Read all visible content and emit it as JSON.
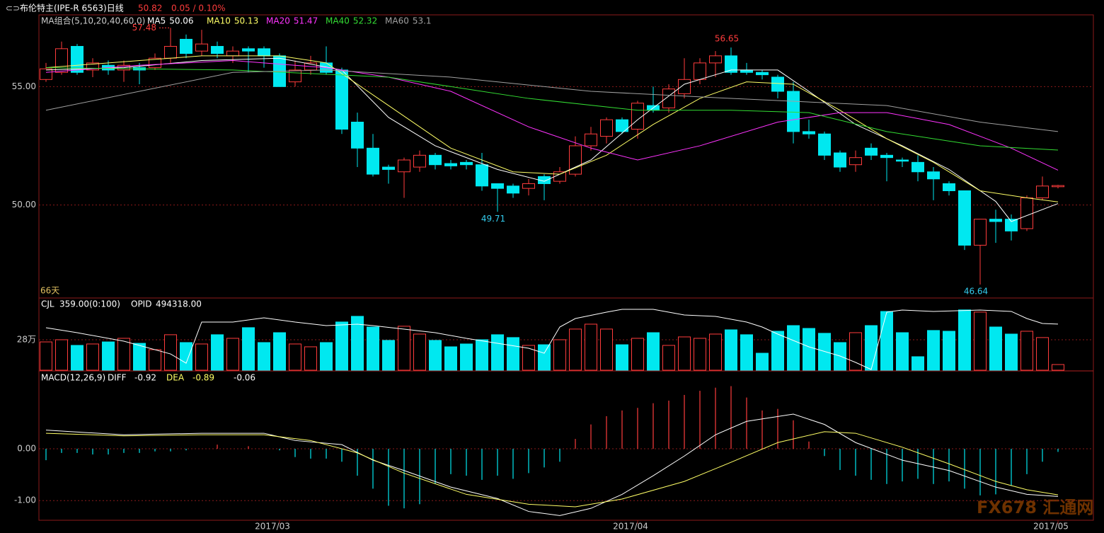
{
  "chart_data": [
    {
      "type": "candlestick",
      "title": "布伦特主(IPE-R 6563)日线",
      "change": "0.05 / 0.10%",
      "legend_title": "MA组合(5,10,20,40,60,0)",
      "period_label": "66天",
      "up_color": "#ff3c3c",
      "down_color": "#00e8f0",
      "ylim": [
        46.1,
        58.0
      ],
      "yticks": [
        {
          "value": 55,
          "label": "55.00"
        },
        {
          "value": 50,
          "label": "50.00"
        }
      ],
      "annotations": [
        57.48,
        56.65,
        49.71,
        46.64
      ],
      "open": [
        55.3,
        55.6,
        56.7,
        55.7,
        55.9,
        55.7,
        55.8,
        55.8,
        56.2,
        57.0,
        56.5,
        56.7,
        56.3,
        56.6,
        56.6,
        56.3,
        55.2,
        55.7,
        56.0,
        55.7,
        53.5,
        52.4,
        51.6,
        51.4,
        51.6,
        52.1,
        51.75,
        51.8,
        51.7,
        50.9,
        50.8,
        50.7,
        51.2,
        51.0,
        51.3,
        52.5,
        52.9,
        53.6,
        53.2,
        54.2,
        54.1,
        54.7,
        55.3,
        56.0,
        56.3,
        55.7,
        55.6,
        55.4,
        54.8,
        53.1,
        53.0,
        52.2,
        51.7,
        52.4,
        52.1,
        51.9,
        51.8,
        51.4,
        50.9,
        50.6,
        48.3,
        49.4,
        49.4,
        49.0,
        50.3,
        50.77
      ],
      "high": [
        56.0,
        56.9,
        56.8,
        56.2,
        56.1,
        56.1,
        56.0,
        56.4,
        57.48,
        57.2,
        57.4,
        56.9,
        56.7,
        56.7,
        56.7,
        56.4,
        56.1,
        56.3,
        56.7,
        55.8,
        53.9,
        53.0,
        51.7,
        52.0,
        52.3,
        52.2,
        51.9,
        51.9,
        52.2,
        50.9,
        50.9,
        51.1,
        51.3,
        51.6,
        52.9,
        53.3,
        53.7,
        53.7,
        54.4,
        55.0,
        55.1,
        56.2,
        56.2,
        56.5,
        56.65,
        56.0,
        55.7,
        55.5,
        55.2,
        53.6,
        53.1,
        52.3,
        52.3,
        52.6,
        52.2,
        52.0,
        52.1,
        51.6,
        51.0,
        50.6,
        49.4,
        49.8,
        49.6,
        50.4,
        51.2,
        50.85
      ],
      "low": [
        55.2,
        55.5,
        55.5,
        55.4,
        55.5,
        55.2,
        55.1,
        55.7,
        56.0,
        56.2,
        56.3,
        56.2,
        56.0,
        55.6,
        55.8,
        55.0,
        55.0,
        55.5,
        55.5,
        53.0,
        51.6,
        51.2,
        50.9,
        50.3,
        51.4,
        51.5,
        51.5,
        51.5,
        50.6,
        49.71,
        50.3,
        50.4,
        50.2,
        50.9,
        51.2,
        52.3,
        52.6,
        53.0,
        52.8,
        53.9,
        53.9,
        54.5,
        55.1,
        55.4,
        55.5,
        55.5,
        55.3,
        54.5,
        52.6,
        52.8,
        51.9,
        51.4,
        51.4,
        51.9,
        51.0,
        51.6,
        51.0,
        50.2,
        50.4,
        48.1,
        46.64,
        48.4,
        48.5,
        48.9,
        50.2,
        50.7
      ],
      "close": [
        55.75,
        56.6,
        55.6,
        56.0,
        55.7,
        55.9,
        55.7,
        56.2,
        56.7,
        56.4,
        56.8,
        56.4,
        56.5,
        56.5,
        56.3,
        55.0,
        55.7,
        56.0,
        55.6,
        53.2,
        52.4,
        51.3,
        51.5,
        51.9,
        52.1,
        51.7,
        51.65,
        51.7,
        50.8,
        50.7,
        50.5,
        50.9,
        50.9,
        51.4,
        52.5,
        53.0,
        53.6,
        53.1,
        54.3,
        54.0,
        54.9,
        55.3,
        56.0,
        56.3,
        55.6,
        55.6,
        55.5,
        54.8,
        53.1,
        53.0,
        52.1,
        51.6,
        52.0,
        52.1,
        52.0,
        51.85,
        51.4,
        51.1,
        50.6,
        48.3,
        49.4,
        49.3,
        48.9,
        50.3,
        50.8,
        50.82
      ],
      "series": [
        {
          "name": "MA5",
          "color": "#ffffff",
          "x": [
            0,
            5,
            10,
            15,
            19,
            22,
            25,
            29,
            32,
            35,
            38,
            41,
            44,
            47,
            49,
            52,
            55,
            58,
            61,
            62,
            65
          ],
          "values": [
            55.7,
            55.8,
            56.1,
            56.2,
            55.7,
            53.7,
            52.5,
            51.5,
            51.0,
            51.9,
            53.6,
            55.1,
            55.7,
            55.7,
            54.8,
            53.4,
            52.5,
            51.5,
            50.15,
            49.3,
            50.06
          ]
        },
        {
          "name": "MA10",
          "color": "#ffff66",
          "x": [
            0,
            10,
            15,
            18,
            22,
            26,
            30,
            33,
            36,
            39,
            42,
            45,
            48,
            51,
            54,
            57,
            60,
            63,
            65
          ],
          "values": [
            55.8,
            56.3,
            56.3,
            56.0,
            54.2,
            52.4,
            51.4,
            51.3,
            52.1,
            53.4,
            54.5,
            55.2,
            55.1,
            54.0,
            52.8,
            51.8,
            50.6,
            50.3,
            50.13
          ]
        },
        {
          "name": "MA20",
          "color": "#ff33ff",
          "x": [
            0,
            6,
            12,
            18,
            22,
            26,
            31,
            35,
            38,
            42,
            47,
            51,
            54,
            58,
            62,
            65
          ],
          "values": [
            55.6,
            55.9,
            56.1,
            55.8,
            55.4,
            54.8,
            53.3,
            52.4,
            51.9,
            52.5,
            53.5,
            53.9,
            53.9,
            53.4,
            52.4,
            51.47
          ]
        },
        {
          "name": "MA40",
          "color": "#33dd33",
          "x": [
            0,
            12,
            22,
            31,
            38,
            44,
            49,
            54,
            60,
            65
          ],
          "values": [
            55.8,
            55.7,
            55.4,
            54.5,
            54.0,
            54.0,
            53.9,
            53.1,
            52.5,
            52.32
          ]
        },
        {
          "name": "MA60",
          "color": "#a0a0a0",
          "x": [
            0,
            6,
            12,
            18,
            26,
            35,
            44,
            54,
            60,
            65
          ],
          "values": [
            54.0,
            54.8,
            55.6,
            55.7,
            55.4,
            54.8,
            54.5,
            54.2,
            53.5,
            53.1
          ]
        }
      ]
    },
    {
      "type": "volume",
      "title": "CJL",
      "params": "359.00(0:100)",
      "ylim": [
        0,
        657000
      ],
      "yticks": [
        {
          "value": 280000,
          "label": "28万"
        }
      ],
      "values": [
        260000,
        280000,
        228000,
        241000,
        260000,
        293000,
        247000,
        189000,
        326000,
        254000,
        241000,
        326000,
        293000,
        391000,
        254000,
        345000,
        241000,
        215000,
        254000,
        443000,
        495000,
        397000,
        274000,
        404000,
        332000,
        274000,
        215000,
        241000,
        280000,
        326000,
        300000,
        228000,
        234000,
        280000,
        378000,
        423000,
        378000,
        234000,
        293000,
        345000,
        228000,
        306000,
        293000,
        332000,
        371000,
        326000,
        156000,
        358000,
        410000,
        384000,
        339000,
        254000,
        345000,
        410000,
        540000,
        345000,
        124000,
        365000,
        358000,
        554000,
        534000,
        397000,
        332000,
        358000,
        300000,
        52000
      ],
      "series": [
        {
          "name": "OPID",
          "last_label": "494318.00",
          "color": "#ffffff",
          "ylim": [
            330000,
            585000
          ],
          "x": [
            0,
            2,
            5,
            8,
            9,
            10,
            12,
            14,
            16,
            18,
            20,
            21,
            23,
            25,
            27,
            29,
            31,
            32,
            33,
            34,
            36,
            37,
            39,
            41,
            43,
            45,
            46,
            47,
            49,
            51,
            52,
            53,
            54,
            55,
            57,
            60,
            62,
            63,
            64,
            65
          ],
          "values": [
            481500,
            463800,
            433500,
            388000,
            355000,
            501700,
            501700,
            516900,
            501700,
            489000,
            494000,
            489000,
            476500,
            463800,
            443600,
            426000,
            408300,
            390600,
            484000,
            514300,
            537000,
            547000,
            547000,
            527000,
            522000,
            501700,
            484000,
            458800,
            413300,
            380500,
            357800,
            332500,
            537000,
            544600,
            539600,
            544600,
            539600,
            514300,
            496700,
            494318
          ]
        }
      ]
    },
    {
      "type": "macd",
      "title": "MACD(12,26,9)",
      "ylim": [
        -1.38,
        1.49
      ],
      "yticks": [
        {
          "value": 0,
          "label": "0.00"
        },
        {
          "value": -1,
          "label": "-1.00"
        }
      ],
      "xticks": [
        {
          "value": 15,
          "label": "2017/03"
        },
        {
          "value": 38,
          "label": "2017/04"
        },
        {
          "value": 65,
          "label": "2017/05"
        }
      ],
      "values": [
        -0.22,
        -0.08,
        -0.08,
        -0.11,
        -0.11,
        -0.08,
        -0.08,
        -0.05,
        -0.05,
        -0.03,
        0,
        0.08,
        0,
        0.05,
        0,
        -0.03,
        -0.16,
        -0.19,
        -0.19,
        -0.25,
        -0.52,
        -0.77,
        -1.1,
        -1.15,
        -1.07,
        -0.68,
        -0.49,
        -0.52,
        -0.6,
        -0.52,
        -0.58,
        -0.47,
        -0.36,
        -0.25,
        0.19,
        0.47,
        0.63,
        0.74,
        0.79,
        0.88,
        0.93,
        1.04,
        1.12,
        1.18,
        1.21,
        0.99,
        0.74,
        0.77,
        0.55,
        0.14,
        -0.14,
        -0.41,
        -0.52,
        -0.6,
        -0.68,
        -0.63,
        -0.58,
        -0.68,
        -0.63,
        -0.77,
        -0.9,
        -0.88,
        -0.71,
        -0.49,
        -0.25,
        -0.06
      ],
      "series": [
        {
          "name": "DIFF",
          "color": "#ffffff",
          "x": [
            0,
            5,
            10,
            14,
            16,
            19,
            21,
            23,
            26,
            29,
            31,
            33,
            35,
            37,
            39,
            41,
            43,
            45,
            48,
            50,
            52,
            55,
            58,
            61,
            63,
            65
          ],
          "values": [
            0.36,
            0.27,
            0.3,
            0.3,
            0.16,
            0.08,
            -0.22,
            -0.42,
            -0.74,
            -0.96,
            -1.21,
            -1.29,
            -1.15,
            -0.88,
            -0.52,
            -0.14,
            0.27,
            0.53,
            0.67,
            0.47,
            0.12,
            -0.22,
            -0.42,
            -0.74,
            -0.88,
            -0.92
          ]
        },
        {
          "name": "DEA",
          "color": "#ffff66",
          "x": [
            0,
            5,
            10,
            14,
            17,
            20,
            23,
            27,
            31,
            34,
            37,
            41,
            44,
            47,
            50,
            52,
            55,
            58,
            61,
            63,
            65
          ],
          "values": [
            0.3,
            0.25,
            0.27,
            0.27,
            0.16,
            -0.08,
            -0.47,
            -0.88,
            -1.07,
            -1.12,
            -0.97,
            -0.63,
            -0.26,
            0.12,
            0.33,
            0.3,
            0.03,
            -0.29,
            -0.63,
            -0.79,
            -0.89
          ]
        }
      ]
    }
  ],
  "watermark": "FX678 汇通网"
}
